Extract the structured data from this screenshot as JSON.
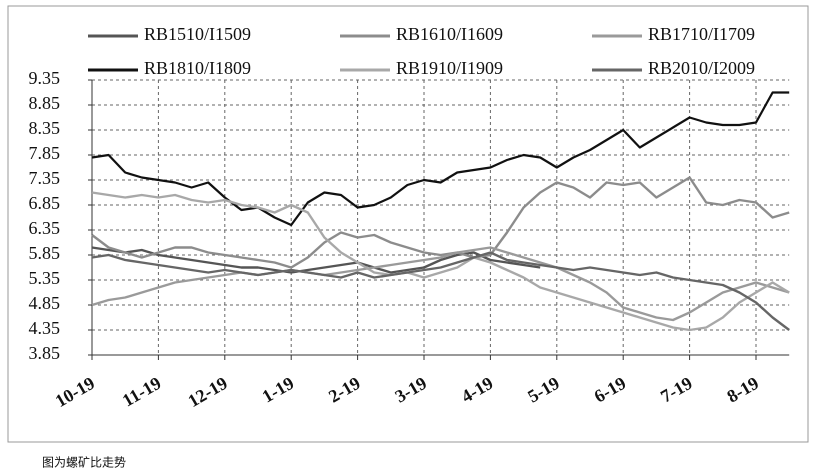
{
  "chart_data": {
    "type": "line",
    "caption": "图为螺矿比走势",
    "categories": [
      "10-19",
      null,
      null,
      null,
      "11-19",
      null,
      null,
      null,
      "12-19",
      null,
      null,
      null,
      "1-19",
      null,
      null,
      null,
      "2-19",
      null,
      null,
      null,
      "3-19",
      null,
      null,
      null,
      "4-19",
      null,
      null,
      null,
      "5-19",
      null,
      null,
      null,
      "6-19",
      null,
      null,
      null,
      "7-19",
      null,
      null,
      null,
      "8-19",
      null,
      null
    ],
    "ylim": [
      3.85,
      9.35
    ],
    "yticks": [
      3.85,
      4.35,
      4.85,
      5.35,
      5.85,
      6.35,
      6.85,
      7.35,
      7.85,
      8.35,
      8.85,
      9.35
    ],
    "grid": true,
    "series": [
      {
        "name": "RB1510/I1509",
        "color": "#555555",
        "values": [
          6.0,
          5.95,
          5.9,
          5.95,
          5.85,
          5.8,
          5.75,
          5.7,
          5.65,
          5.6,
          5.6,
          5.55,
          5.5,
          5.55,
          5.6,
          5.65,
          5.7,
          5.6,
          5.5,
          5.55,
          5.6,
          5.75,
          5.85,
          5.9,
          5.75,
          5.7,
          5.65,
          5.6,
          null,
          null,
          null,
          null,
          null,
          null,
          null,
          null,
          null,
          null,
          null,
          null,
          null,
          null,
          null
        ]
      },
      {
        "name": "RB1610/I1609",
        "color": "#8c8c8c",
        "values": [
          6.25,
          6.0,
          5.9,
          5.8,
          5.9,
          6.0,
          6.0,
          5.9,
          5.85,
          5.8,
          5.75,
          5.7,
          5.6,
          5.8,
          6.1,
          6.3,
          6.2,
          6.25,
          6.1,
          6.0,
          5.9,
          5.85,
          5.9,
          5.8,
          5.85,
          6.3,
          6.8,
          7.1,
          7.3,
          7.2,
          7.0,
          7.3,
          7.25,
          7.3,
          7.0,
          7.2,
          7.4,
          6.9,
          6.85,
          6.95,
          6.9,
          6.6,
          6.7
        ]
      },
      {
        "name": "RB1710/I1709",
        "color": "#9a9a9a",
        "values": [
          4.85,
          4.95,
          5.0,
          5.1,
          5.2,
          5.3,
          5.35,
          5.4,
          5.45,
          5.5,
          5.45,
          5.5,
          5.55,
          5.5,
          5.45,
          5.5,
          5.55,
          5.6,
          5.65,
          5.7,
          5.75,
          5.8,
          5.9,
          5.95,
          6.0,
          5.9,
          5.8,
          5.7,
          5.6,
          5.45,
          5.3,
          5.1,
          4.8,
          4.7,
          4.6,
          4.55,
          4.7,
          4.9,
          5.1,
          5.2,
          5.3,
          5.2,
          5.1
        ]
      },
      {
        "name": "RB1810/I1809",
        "color": "#111111",
        "values": [
          7.8,
          7.85,
          7.5,
          7.4,
          7.35,
          7.3,
          7.2,
          7.3,
          7.0,
          6.75,
          6.8,
          6.6,
          6.45,
          6.9,
          7.1,
          7.05,
          6.8,
          6.85,
          7.0,
          7.25,
          7.35,
          7.3,
          7.5,
          7.55,
          7.6,
          7.75,
          7.85,
          7.8,
          7.6,
          7.8,
          7.95,
          8.15,
          8.35,
          8.0,
          8.2,
          8.4,
          8.6,
          8.5,
          8.45,
          8.45,
          8.5,
          9.1,
          9.1
        ]
      },
      {
        "name": "RB1910/I1909",
        "color": "#a8a8a8",
        "values": [
          7.1,
          7.05,
          7.0,
          7.05,
          7.0,
          7.05,
          6.95,
          6.9,
          6.95,
          6.85,
          6.8,
          6.7,
          6.85,
          6.7,
          6.2,
          5.9,
          5.7,
          5.5,
          5.45,
          5.5,
          5.4,
          5.5,
          5.6,
          5.8,
          5.7,
          5.55,
          5.4,
          5.2,
          5.1,
          5.0,
          4.9,
          4.8,
          4.7,
          4.6,
          4.5,
          4.4,
          4.35,
          4.4,
          4.6,
          4.9,
          5.1,
          5.3,
          5.1
        ]
      },
      {
        "name": "RB2010/I2009",
        "color": "#666666",
        "values": [
          5.8,
          5.85,
          5.75,
          5.7,
          5.65,
          5.6,
          5.55,
          5.5,
          5.55,
          5.5,
          5.45,
          5.5,
          5.55,
          5.5,
          5.45,
          5.4,
          5.5,
          5.4,
          5.45,
          5.5,
          5.55,
          5.6,
          5.7,
          5.8,
          5.9,
          5.75,
          5.7,
          5.65,
          5.6,
          5.55,
          5.6,
          5.55,
          5.5,
          5.45,
          5.5,
          5.4,
          5.35,
          5.3,
          5.25,
          5.1,
          4.9,
          4.6,
          4.35
        ]
      }
    ]
  }
}
